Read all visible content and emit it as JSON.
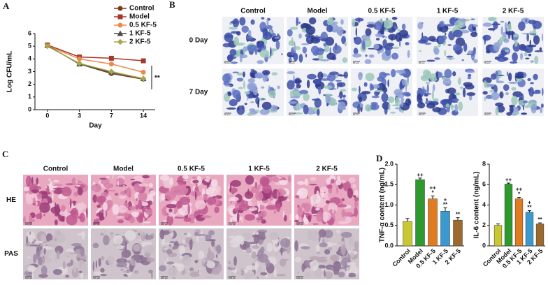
{
  "panel_labels": [
    "A",
    "B",
    "C",
    "D"
  ],
  "chart_data": [
    {
      "type": "line",
      "xlabel": "Day",
      "ylabel": "Log CFU/mL",
      "categories": [
        "0",
        "3",
        "7",
        "14"
      ],
      "ylim": [
        0,
        6
      ],
      "yticks": [
        0,
        1,
        2,
        3,
        4,
        5,
        6
      ],
      "annotation": "**",
      "series": [
        {
          "name": "Control",
          "color": "#7a3b1e",
          "marker": "circle",
          "values": [
            5.05,
            3.6,
            2.85,
            2.4
          ]
        },
        {
          "name": "Model",
          "color": "#a8382c",
          "marker": "square",
          "values": [
            5.1,
            4.15,
            4.05,
            3.85
          ]
        },
        {
          "name": "0.5 KF-5",
          "color": "#ec8a4a",
          "marker": "circle",
          "values": [
            5.05,
            4.0,
            3.6,
            2.95
          ]
        },
        {
          "name": "1 KF-5",
          "color": "#4a4a4a",
          "marker": "triangle",
          "values": [
            5.05,
            3.6,
            2.95,
            2.45
          ]
        },
        {
          "name": "2 KF-5",
          "color": "#a8a84a",
          "marker": "diamond",
          "values": [
            5.0,
            3.65,
            3.0,
            2.45
          ]
        }
      ]
    },
    {
      "type": "bar",
      "ylabel": "TNF-α content (ng/mL)",
      "categories": [
        "Control",
        "Model",
        "0.5 KF-5",
        "1 KF-5",
        "2 KF-5"
      ],
      "values": [
        0.6,
        1.62,
        1.15,
        0.85,
        0.63
      ],
      "errors": [
        0.07,
        0.04,
        0.07,
        0.08,
        0.06
      ],
      "colors": [
        "#c8c832",
        "#2e9a2e",
        "#e07b1f",
        "#3a9ad0",
        "#9c6a2e"
      ],
      "annotations": [
        [],
        [
          "++"
        ],
        [
          "++",
          "*"
        ],
        [
          "+",
          "**"
        ],
        [
          "**"
        ]
      ],
      "ylim": [
        0,
        2.0
      ],
      "yticks": [
        {
          "value": 0,
          "label": "0.0"
        },
        {
          "value": 0.5,
          "label": "0.5"
        },
        {
          "value": 1.0,
          "label": "1.0"
        },
        {
          "value": 1.5,
          "label": "1.5"
        },
        {
          "value": 2.0,
          "label": "2.0"
        }
      ]
    },
    {
      "type": "bar",
      "ylabel": "IL-6 content (ng/mL)",
      "categories": [
        "Control",
        "Model",
        "0.5 KF-5",
        "1 KF-5",
        "2 KF-5"
      ],
      "values": [
        2.0,
        6.05,
        4.6,
        3.3,
        2.15
      ],
      "errors": [
        0.15,
        0.1,
        0.15,
        0.15,
        0.1
      ],
      "colors": [
        "#c8c832",
        "#2e9a2e",
        "#e07b1f",
        "#3a9ad0",
        "#9c6a2e"
      ],
      "annotations": [
        [],
        [
          "++"
        ],
        [
          "++",
          "*"
        ],
        [
          "+",
          "**"
        ],
        [
          "**"
        ]
      ],
      "ylim": [
        0,
        8
      ],
      "yticks": [
        0,
        2,
        4,
        6,
        8
      ]
    }
  ],
  "panel_b": {
    "columns": [
      "Control",
      "Model",
      "0.5 KF-5",
      "1 KF-5",
      "2 KF-5"
    ],
    "rows": [
      "0 Day",
      "7 Day"
    ],
    "scale_label": "50 μm"
  },
  "panel_c": {
    "columns": [
      "Control",
      "Model",
      "0.5 KF-5",
      "1 KF-5",
      "2 KF-5"
    ],
    "rows": [
      "HE",
      "PAS"
    ],
    "scale_label": "100 μm"
  }
}
